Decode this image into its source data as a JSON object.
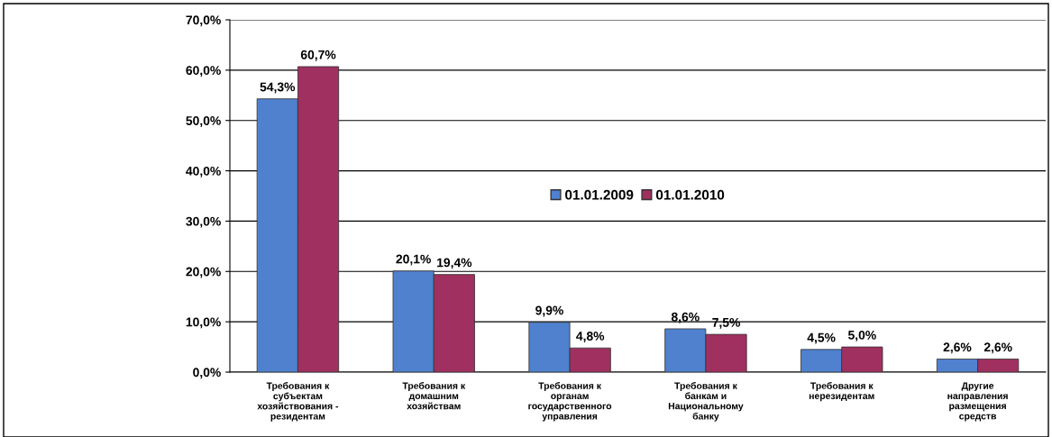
{
  "chart_data": {
    "type": "bar",
    "categories": [
      "Требования к\nсубъектам\nхозяйствования -\nрезидентам",
      "Требования к\nдомашним\nхозяйствам",
      "Требования к\nорганам\nгосударственного\nуправления",
      "Требования к\nбанкам и\nНациональному\nбанку",
      "Требования к\nнерезидентам",
      "Другие\nнаправления\nразмещения\nсредств"
    ],
    "series": [
      {
        "name": "01.01.2009",
        "color": "#4f81cf",
        "values": [
          54.3,
          20.1,
          9.9,
          8.6,
          4.5,
          2.6
        ],
        "value_labels": [
          "54,3%",
          "20,1%",
          "9,9%",
          "8,6%",
          "4,5%",
          "2,6%"
        ]
      },
      {
        "name": "01.01.2010",
        "color": "#a0305f",
        "values": [
          60.7,
          19.4,
          4.8,
          7.5,
          5.0,
          2.6
        ],
        "value_labels": [
          "60,7%",
          "19,4%",
          "4,8%",
          "7,5%",
          "5,0%",
          "2,6%"
        ]
      }
    ],
    "ylim": [
      0,
      70
    ],
    "yticks": [
      {
        "value": 0,
        "label": "0,0%"
      },
      {
        "value": 10,
        "label": "10,0%"
      },
      {
        "value": 20,
        "label": "20,0%"
      },
      {
        "value": 30,
        "label": "30,0%"
      },
      {
        "value": 40,
        "label": "40,0%"
      },
      {
        "value": 50,
        "label": "50,0%"
      },
      {
        "value": 60,
        "label": "60,0%"
      },
      {
        "value": 70,
        "label": "70,0%"
      }
    ],
    "grid": "y",
    "legend": "center"
  }
}
